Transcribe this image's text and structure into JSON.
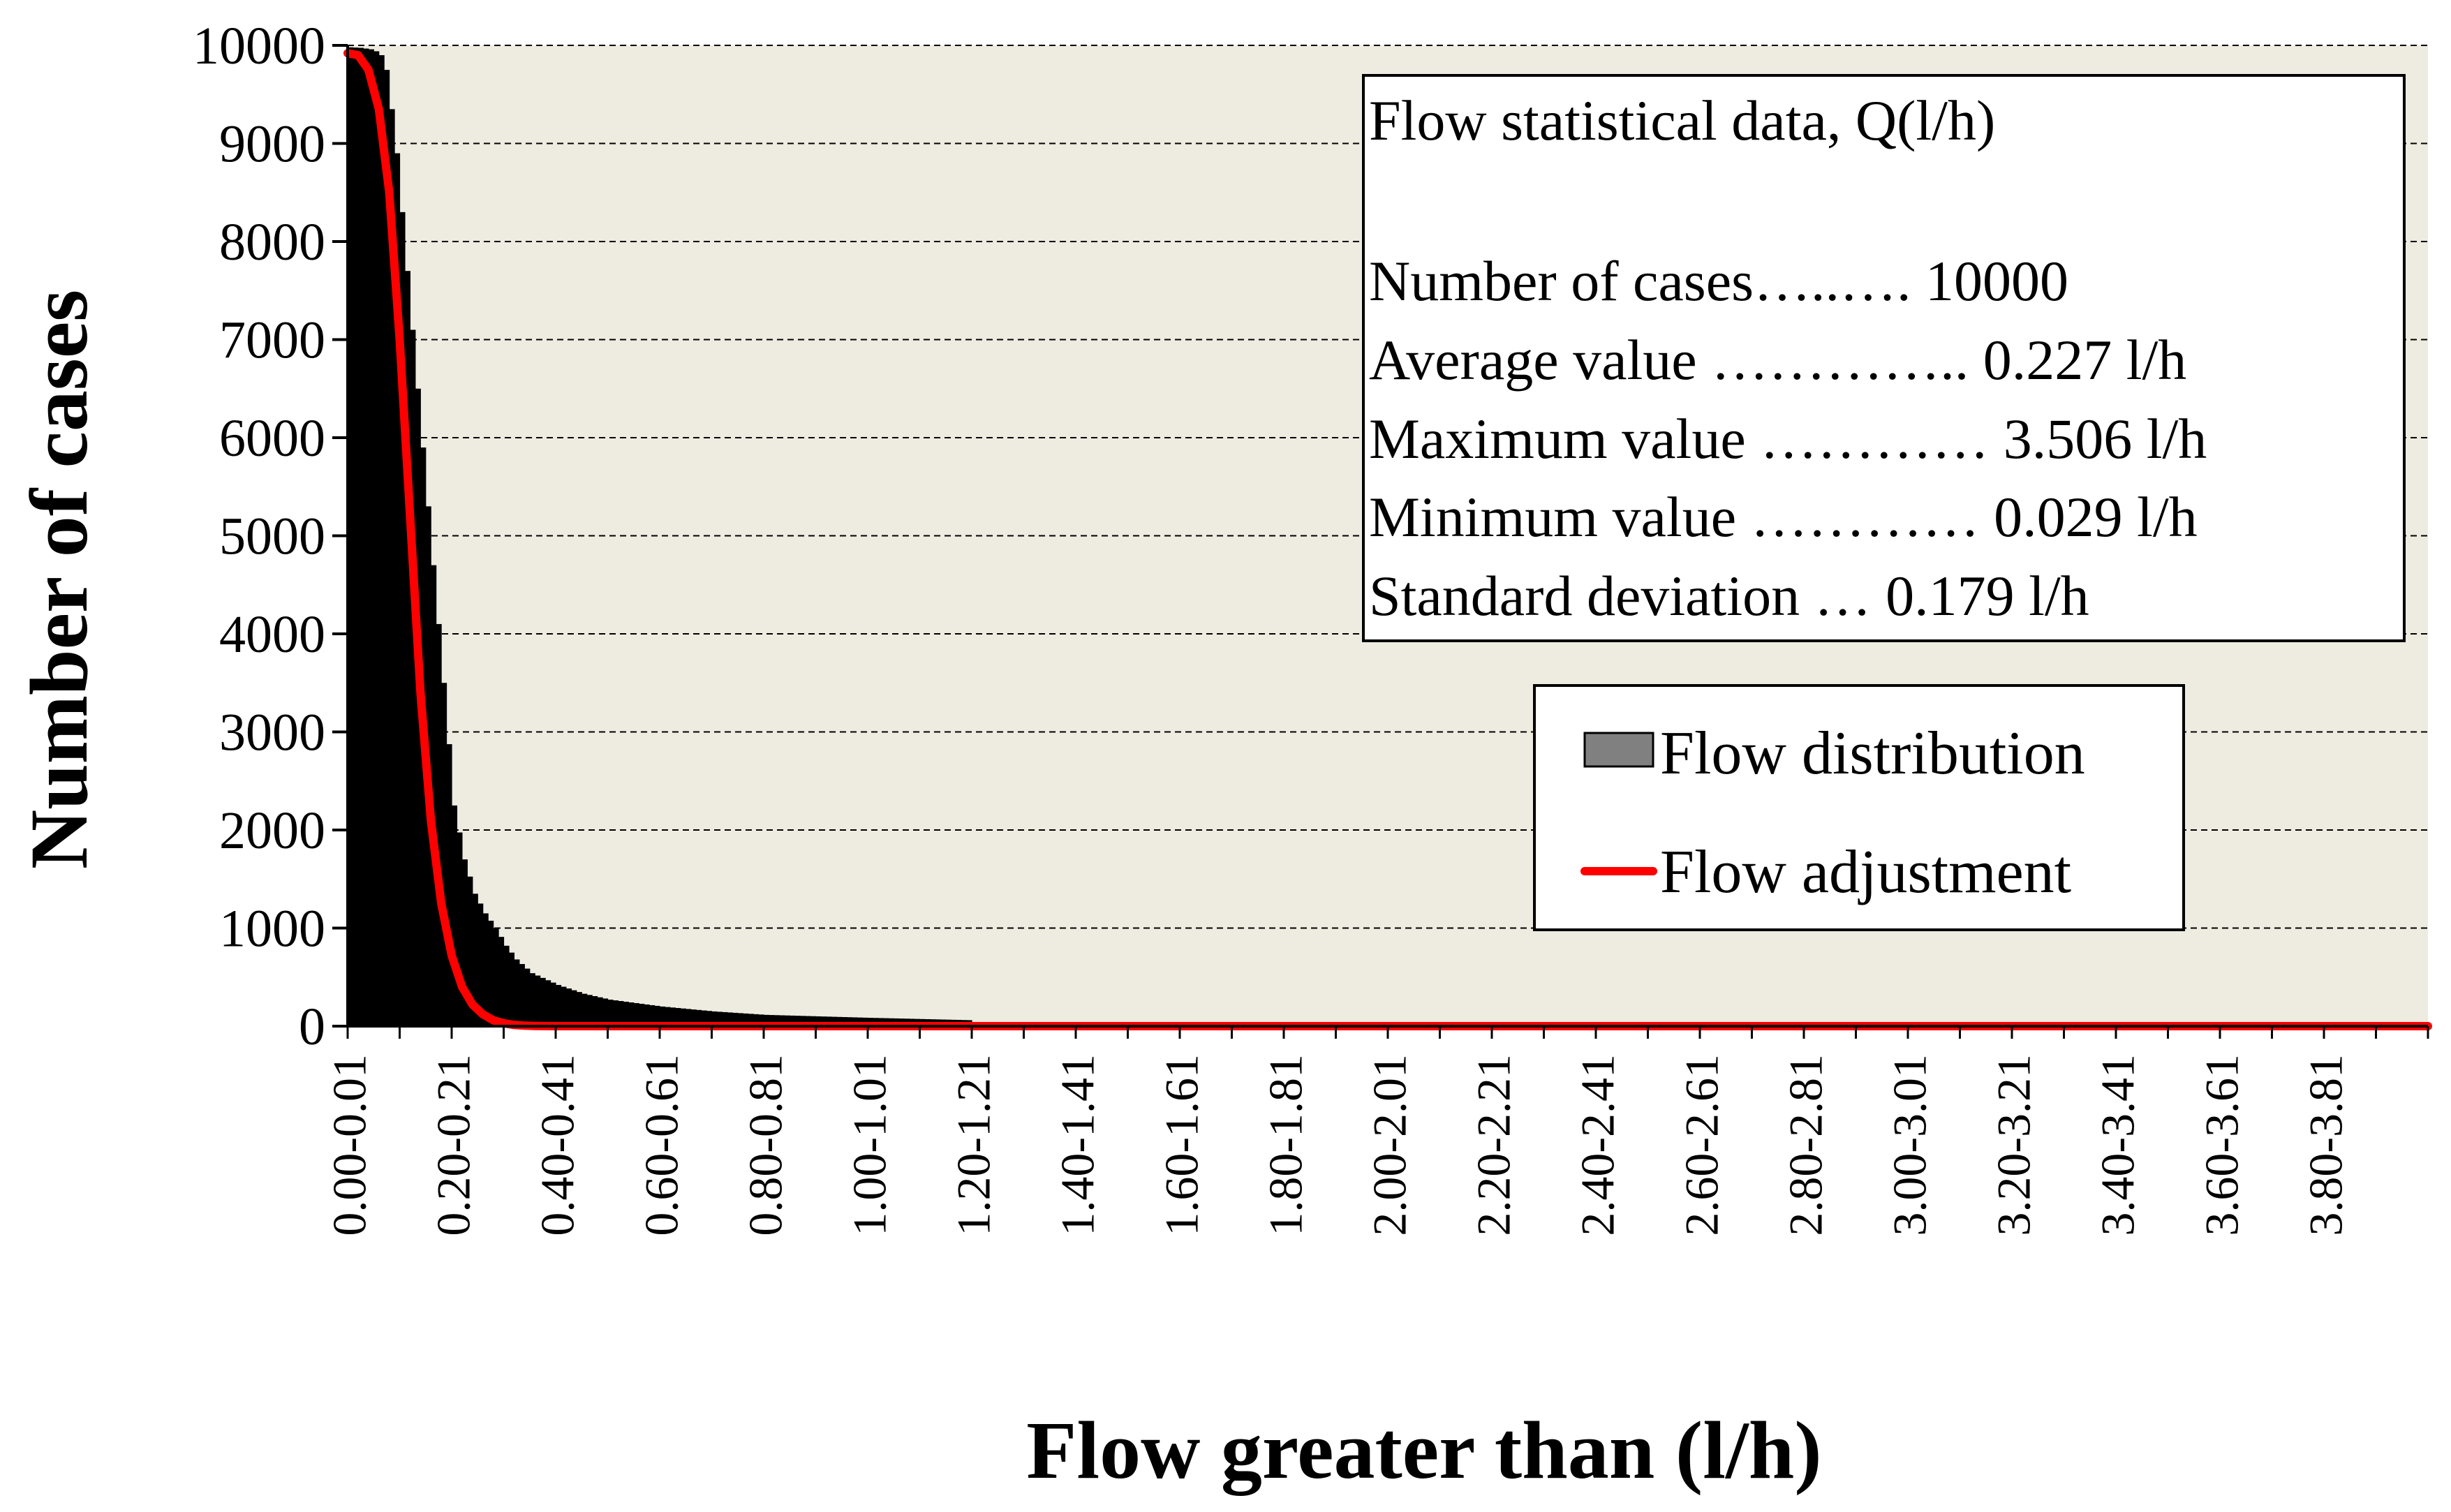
{
  "chart_data": {
    "type": "bar",
    "title": "",
    "xlabel": "Flow greater than (l/h)",
    "ylabel": "Number of cases",
    "ylim": [
      0,
      10000
    ],
    "y_ticks": [
      "0",
      "1000",
      "2000",
      "3000",
      "4000",
      "5000",
      "6000",
      "7000",
      "8000",
      "9000",
      "10000"
    ],
    "x_tick_labels": [
      "0.00-0.01",
      "0.20-0.21",
      "0.40-0.41",
      "0.60-0.61",
      "0.80-0.81",
      "1.00-1.01",
      "1.20-1.21",
      "1.40-1.41",
      "1.60-1.61",
      "1.80-1.81",
      "2.00-2.01",
      "2.20-2.21",
      "2.40-2.41",
      "2.60-2.61",
      "2.80-2.81",
      "3.00-3.01",
      "3.20-3.21",
      "3.40-3.41",
      "3.60-3.61",
      "3.80-3.81"
    ],
    "x_range_l_per_h": [
      0.0,
      4.0
    ],
    "bin_width_l_per_h": 0.01,
    "grid": "horizontal dashed",
    "background_color": "#EEEBE0",
    "series": [
      {
        "name": "Flow distribution",
        "kind": "bars",
        "color": "#000000",
        "legend_swatch_color": "#808080",
        "x": [
          0.0,
          0.02,
          0.04,
          0.05,
          0.06,
          0.07,
          0.08,
          0.09,
          0.1,
          0.12,
          0.14,
          0.16,
          0.18,
          0.2,
          0.22,
          0.24,
          0.26,
          0.28,
          0.3,
          0.32,
          0.35,
          0.4,
          0.45,
          0.5,
          0.6,
          0.7,
          0.8,
          1.0,
          1.2,
          1.21
        ],
        "values": [
          9980,
          9975,
          9960,
          9940,
          9900,
          9750,
          9350,
          8900,
          8300,
          7100,
          5900,
          4700,
          3500,
          2250,
          1700,
          1350,
          1150,
          1000,
          820,
          680,
          540,
          420,
          330,
          270,
          200,
          150,
          115,
          85,
          60,
          0
        ]
      },
      {
        "name": "Flow adjustment",
        "kind": "line",
        "color": "#FF0000",
        "x": [
          0.0,
          0.02,
          0.04,
          0.06,
          0.08,
          0.1,
          0.12,
          0.14,
          0.16,
          0.18,
          0.2,
          0.22,
          0.24,
          0.26,
          0.28,
          0.3,
          0.32,
          0.34,
          0.36,
          0.38,
          0.4,
          0.45,
          0.5,
          1.0,
          2.0,
          3.0,
          4.0
        ],
        "values": [
          9920,
          9900,
          9750,
          9350,
          8500,
          7000,
          5200,
          3400,
          2100,
          1250,
          720,
          400,
          220,
          120,
          60,
          30,
          12,
          5,
          2,
          1,
          0,
          0,
          0,
          0,
          0,
          0,
          0
        ]
      }
    ],
    "stats_box": {
      "title": "Flow statistical data, Q(l/h)",
      "lines": [
        "Number of cases…..…. 10000",
        "Average value ………….. 0.227 l/h",
        "Maximum value ………… 3.506 l/h",
        "Minimum value ………… 0.029 l/h",
        "Standard deviation … 0.179 l/h"
      ]
    },
    "legend": {
      "placement": "center-right",
      "items": [
        "Flow distribution",
        "Flow adjustment"
      ]
    }
  }
}
